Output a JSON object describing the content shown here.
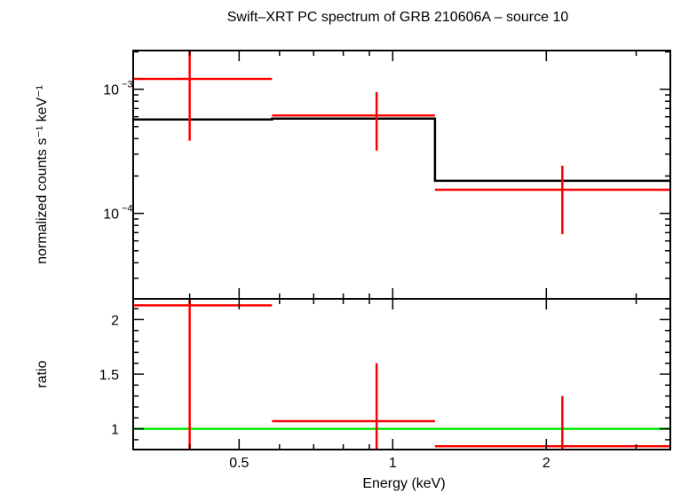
{
  "chart_data": {
    "title": "Swift–XRT PC spectrum of GRB 210606A – source 10",
    "xlabel": "Energy (keV)",
    "x_scale": "log",
    "xlim": [
      0.31,
      3.5
    ],
    "x_ticks": [
      {
        "value": 0.5,
        "label": "0.5"
      },
      {
        "value": 1,
        "label": "1"
      },
      {
        "value": 2,
        "label": "2"
      }
    ],
    "panels": [
      {
        "type": "step-with-errorbars",
        "ylabel": "normalized counts s⁻¹ keV⁻¹",
        "y_scale": "log",
        "ylim": [
          2.05e-05,
          0.00205
        ],
        "y_ticks": [
          {
            "value": 0.001,
            "base": "10",
            "exp": "−3"
          },
          {
            "value": 0.0001,
            "base": "10",
            "exp": "−4"
          }
        ],
        "colors": {
          "data": "#ff0000",
          "model": "#000000"
        },
        "data": [
          {
            "xlo": 0.31,
            "xhi": 0.58,
            "x": 0.4,
            "y": 0.00121,
            "ylo": 0.000385,
            "yhi": 0.00205
          },
          {
            "xlo": 0.58,
            "xhi": 1.21,
            "x": 0.93,
            "y": 0.000615,
            "ylo": 0.00032,
            "yhi": 0.00095
          },
          {
            "xlo": 1.21,
            "xhi": 3.5,
            "x": 2.15,
            "y": 0.000155,
            "ylo": 6.8e-05,
            "yhi": 0.000242
          }
        ],
        "model": [
          {
            "xlo": 0.31,
            "xhi": 0.58,
            "y": 0.00057
          },
          {
            "xlo": 0.58,
            "xhi": 1.21,
            "y": 0.00058
          },
          {
            "xlo": 1.21,
            "xhi": 3.5,
            "y": 0.000183
          }
        ]
      },
      {
        "type": "ratio",
        "ylabel": "ratio",
        "y_scale": "linear",
        "ylim": [
          0.81,
          2.19
        ],
        "y_ticks": [
          {
            "value": 1,
            "label": "1"
          },
          {
            "value": 1.5,
            "label": "1.5"
          },
          {
            "value": 2,
            "label": "2"
          }
        ],
        "colors": {
          "data": "#ff0000",
          "reference": "#00ee00"
        },
        "reference_line": 1,
        "data": [
          {
            "xlo": 0.31,
            "xhi": 0.58,
            "x": 0.4,
            "y": 2.13,
            "ylo": 0.81,
            "yhi": 2.19
          },
          {
            "xlo": 0.58,
            "xhi": 1.21,
            "x": 0.93,
            "y": 1.07,
            "ylo": 0.81,
            "yhi": 1.6
          },
          {
            "xlo": 1.21,
            "xhi": 3.5,
            "x": 2.15,
            "y": 0.84,
            "ylo": 0.81,
            "yhi": 1.3
          }
        ]
      }
    ]
  }
}
